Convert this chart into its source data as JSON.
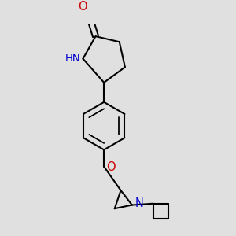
{
  "background_color": "#e0e0e0",
  "bond_color": "#000000",
  "N_color": "#0000cc",
  "O_color": "#cc0000",
  "line_width": 1.5,
  "font_size": 9.5,
  "xlim": [
    -1.5,
    2.5
  ],
  "ylim": [
    -4.5,
    3.0
  ]
}
